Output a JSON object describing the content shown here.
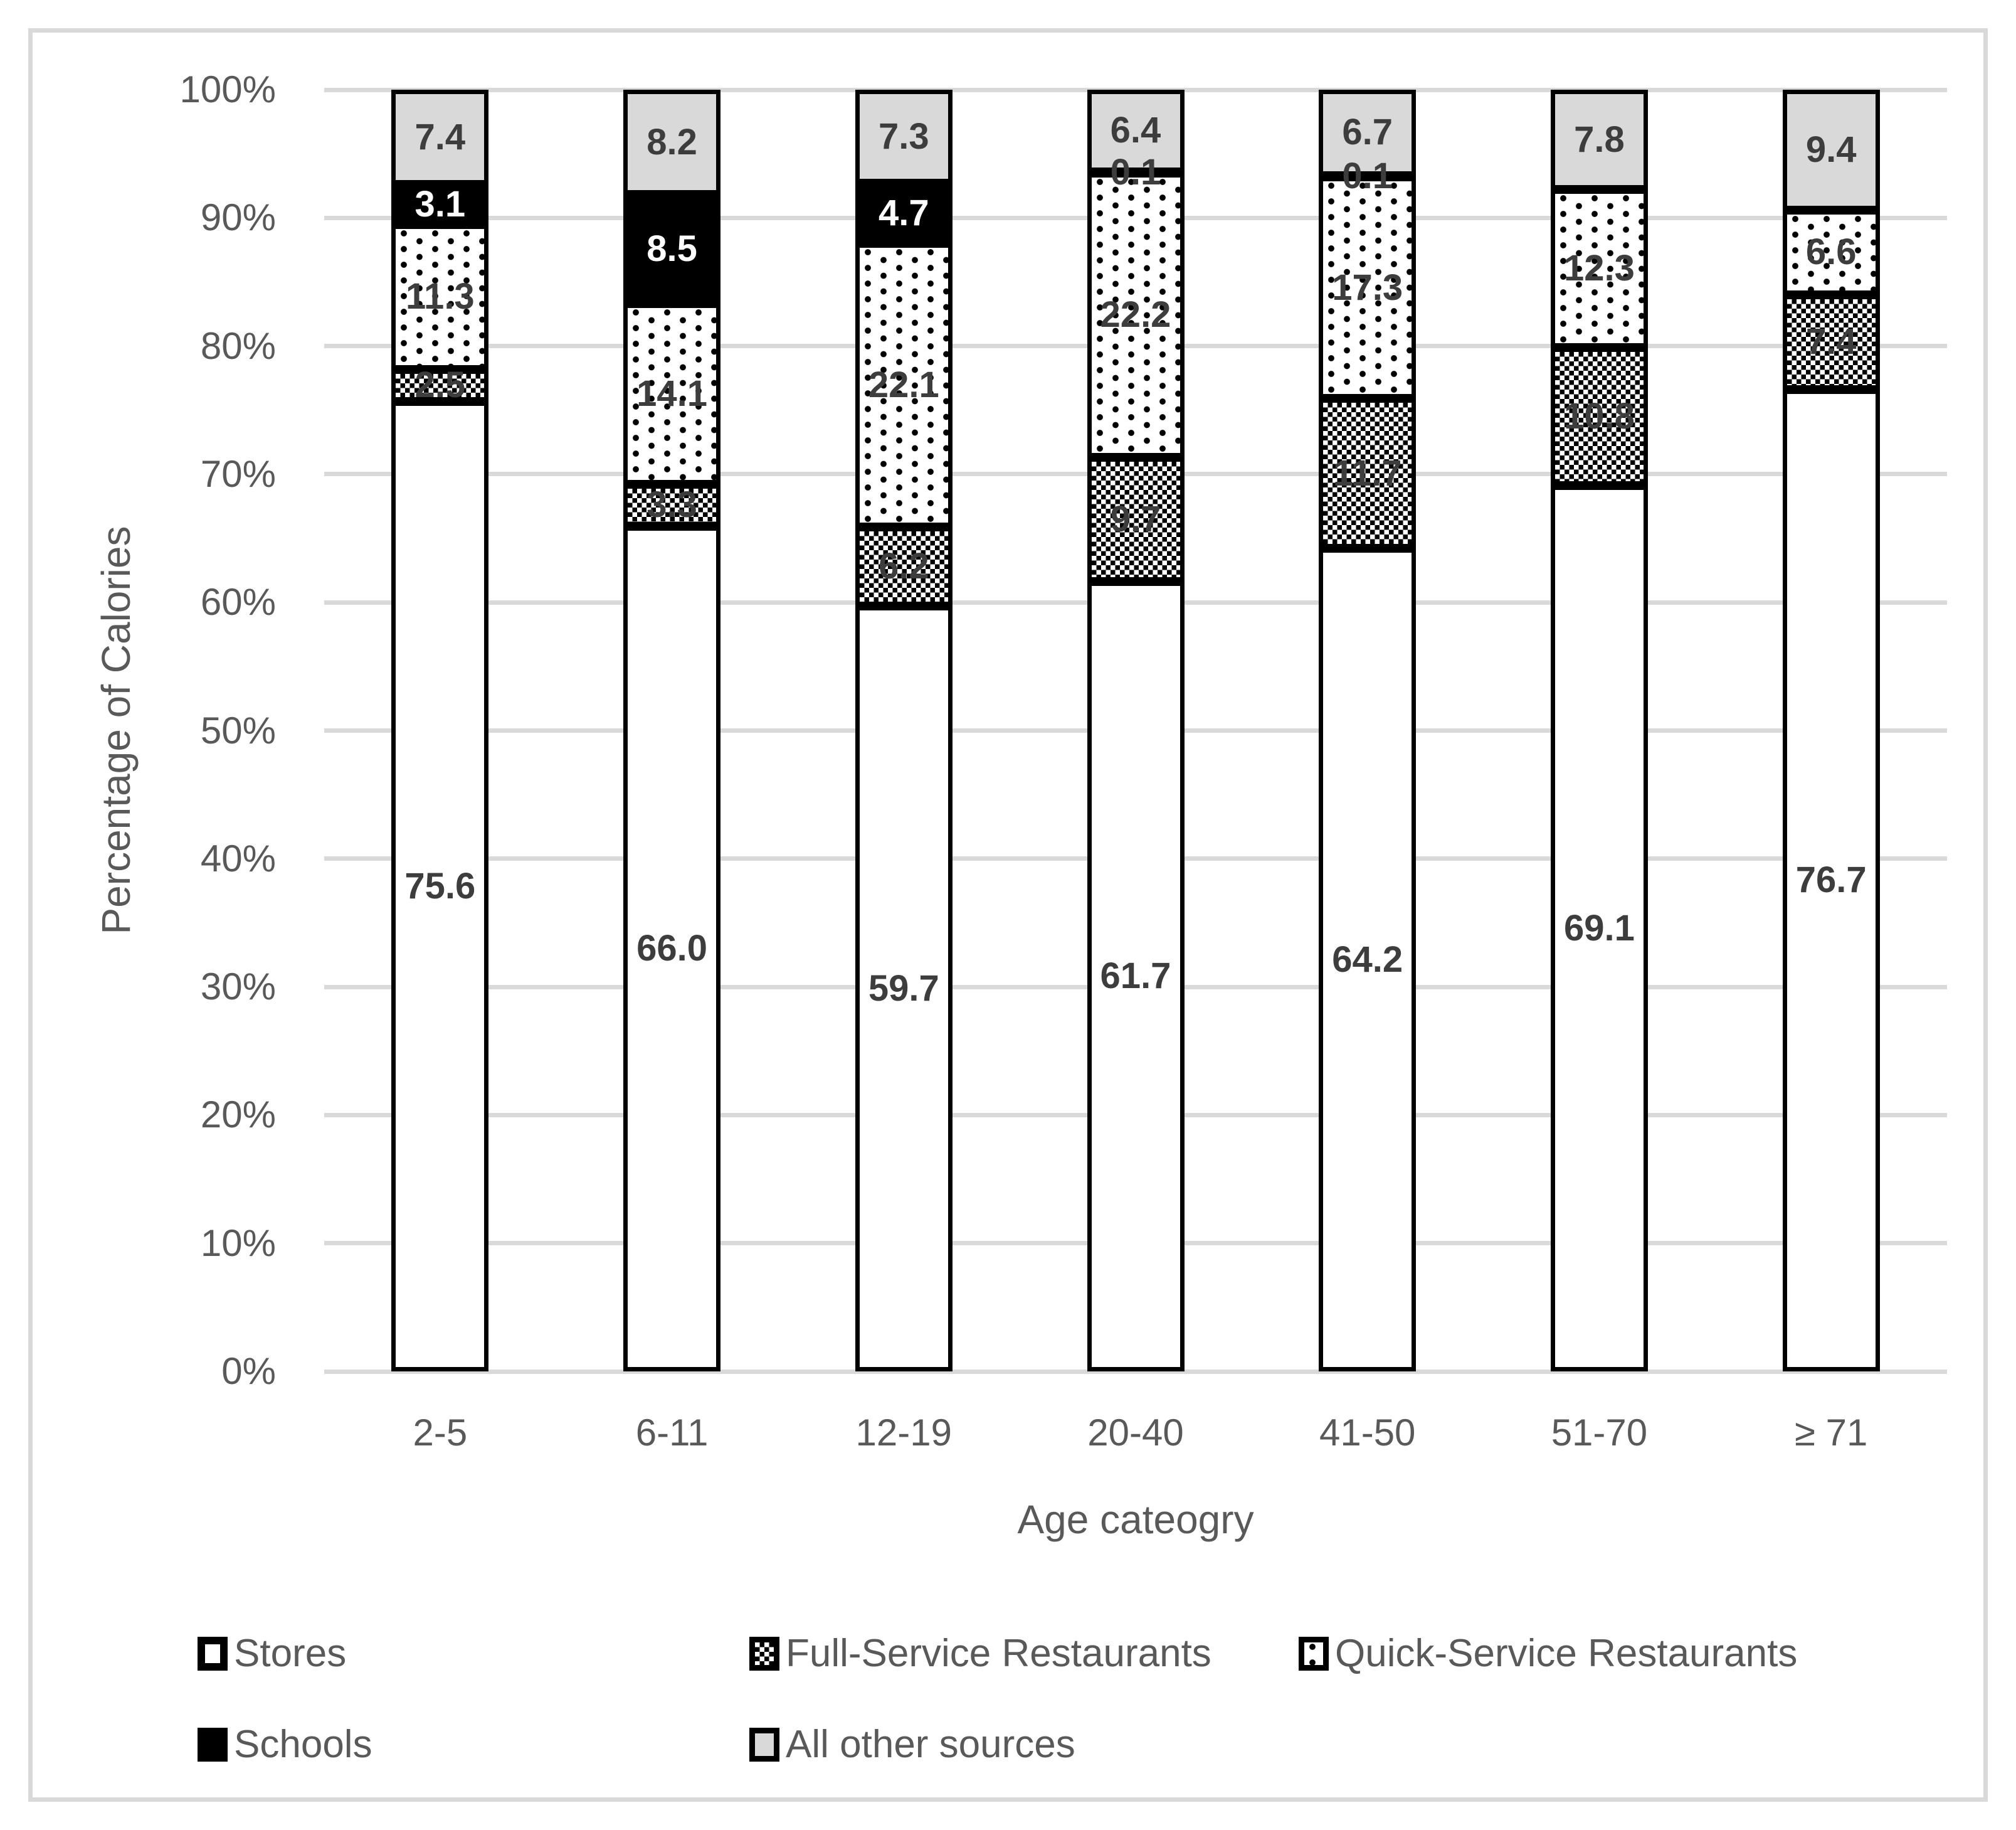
{
  "figure": {
    "y_axis_title": "Percentage of Calories",
    "x_axis_title": "Age cateogry",
    "y_ticks": [
      "0%",
      "10%",
      "20%",
      "30%",
      "40%",
      "50%",
      "60%",
      "70%",
      "80%",
      "90%",
      "100%"
    ]
  },
  "chart_data": {
    "type": "bar",
    "stacked": true,
    "title": "",
    "xlabel": "Age cateogry",
    "ylabel": "Percentage of Calories",
    "ylim": [
      0,
      100
    ],
    "y_tick_format": "percent, 10% steps",
    "grid": "horizontal, light gray",
    "legend_position": "bottom, two rows",
    "categories": [
      "2-5",
      "6-11",
      "12-19",
      "20-40",
      "41-50",
      "51-70",
      "≥ 71"
    ],
    "series": [
      {
        "name": "Stores",
        "pattern": "plain-white",
        "values": [
          "75.6",
          "66.0",
          "59.7",
          "61.7",
          "64.2",
          "69.1",
          "76.7"
        ]
      },
      {
        "name": "Full-Service Restaurants",
        "pattern": "checker",
        "values": [
          "2.5",
          "3.3",
          "6.2",
          "9.7",
          "11.7",
          "10.8",
          "7.4"
        ]
      },
      {
        "name": "Quick-Service Restaurants",
        "pattern": "dots",
        "values": [
          "11.3",
          "14.1",
          "22.1",
          "22.2",
          "17.3",
          "12.3",
          "6.6"
        ]
      },
      {
        "name": "Schools",
        "pattern": "solid-black",
        "values": [
          "3.1",
          "8.5",
          "4.7",
          "0.1",
          "0.1",
          null,
          null
        ]
      },
      {
        "name": "All other sources",
        "pattern": "solid-gray",
        "values": [
          "7.4",
          "8.2",
          "7.3",
          "6.4",
          "6.7",
          "7.8",
          "9.4"
        ]
      }
    ]
  },
  "colors": {
    "axis_text": "#595959",
    "value_label": "#3d3d3d",
    "value_label_on_black": "#ffffff",
    "gridline": "#d9d9d9",
    "bar_outline": "#000000",
    "fill_gray": "#d9d9d9",
    "fill_black": "#000000",
    "fill_white": "#ffffff",
    "outer_border": "#d9d9d9"
  }
}
